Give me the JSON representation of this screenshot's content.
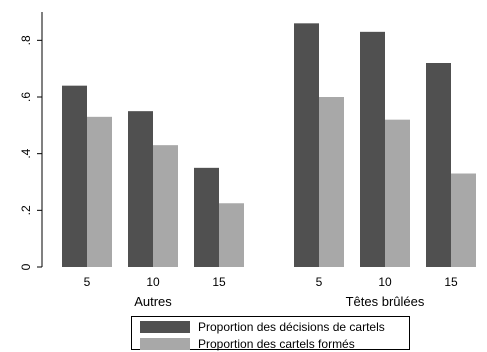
{
  "chart_data": {
    "type": "bar",
    "groups": [
      {
        "label": "Autres",
        "categories": [
          "5",
          "10",
          "15"
        ]
      },
      {
        "label": "Têtes brûlées",
        "categories": [
          "5",
          "10",
          "15"
        ]
      }
    ],
    "series": [
      {
        "name": "Proportion des décisions de cartels",
        "color": "#505050",
        "values": [
          [
            0.64,
            0.55,
            0.35
          ],
          [
            0.86,
            0.83,
            0.72
          ]
        ]
      },
      {
        "name": "Proportion des cartels formés",
        "color": "#a8a8a8",
        "values": [
          [
            0.53,
            0.43,
            0.225
          ],
          [
            0.6,
            0.52,
            0.33
          ]
        ]
      }
    ],
    "ylim": [
      0,
      0.9
    ],
    "yticks": [
      {
        "value": 0,
        "label": "0"
      },
      {
        "value": 0.2,
        "label": ".2"
      },
      {
        "value": 0.4,
        "label": ".4"
      },
      {
        "value": 0.6,
        "label": ".6"
      },
      {
        "value": 0.8,
        "label": ".8"
      }
    ],
    "grid": false,
    "legend_position": "bottom"
  },
  "legend": {
    "series1_label": "Proportion des décisions de cartels",
    "series2_label": "Proportion des cartels formés"
  }
}
